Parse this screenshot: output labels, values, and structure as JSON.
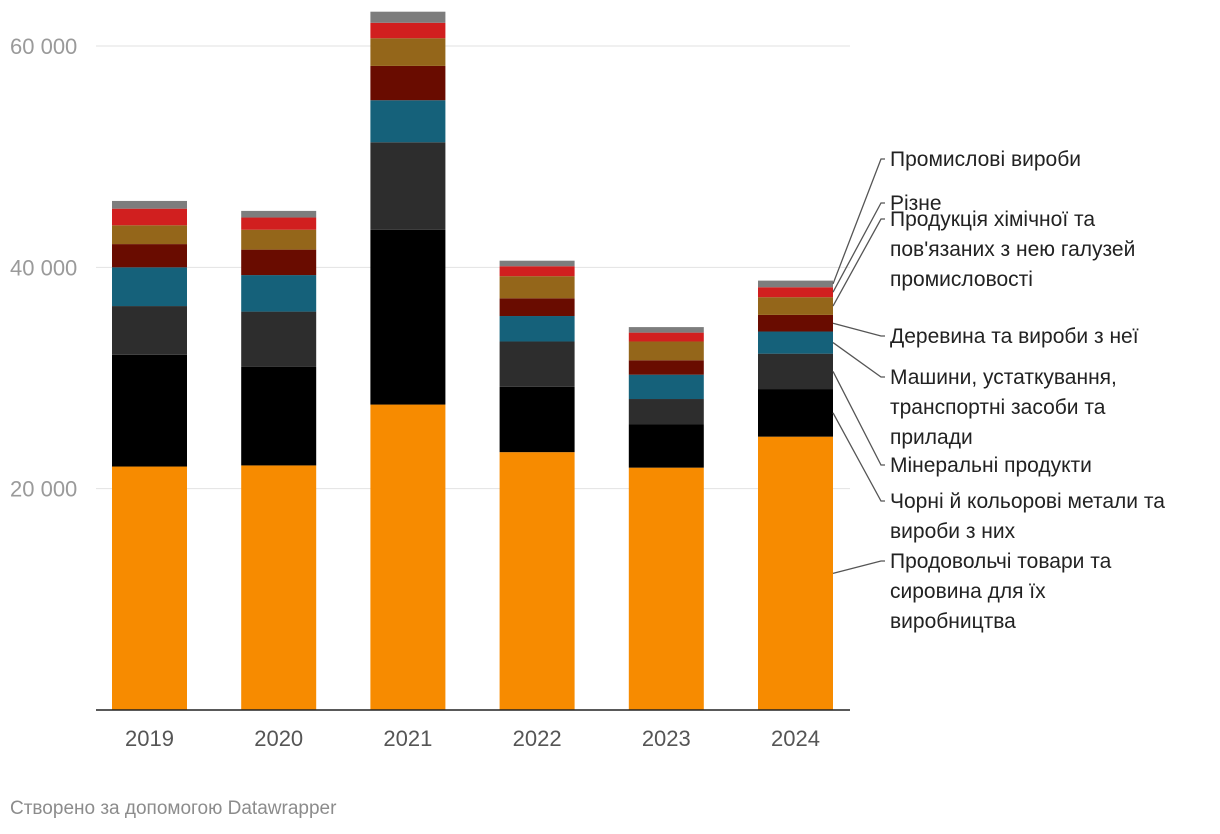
{
  "chart_data": {
    "type": "bar",
    "stacked": true,
    "categories": [
      "2019",
      "2020",
      "2021",
      "2022",
      "2023",
      "2024"
    ],
    "ylim": [
      0,
      60000
    ],
    "yticks": [
      {
        "value": 20000,
        "label": "20 000"
      },
      {
        "value": 40000,
        "label": "40 000"
      },
      {
        "value": 60000,
        "label": "60 000"
      }
    ],
    "grid": true,
    "legend_position": "right",
    "series": [
      {
        "name": "Продовольчі товари та сировина для їх виробництва",
        "label_lines": [
          "Продовольчі товари та",
          "сировина для їх",
          "виробництва"
        ],
        "color": "#f78b00",
        "values": [
          22000,
          22100,
          27600,
          23300,
          21900,
          24700
        ]
      },
      {
        "name": "Чорні й кольорові метали та вироби з них",
        "label_lines": [
          "Чорні й кольорові метали та",
          "вироби з них"
        ],
        "color": "#000000",
        "values": [
          10100,
          8900,
          15800,
          5900,
          3900,
          4300
        ]
      },
      {
        "name": "Мінеральні продукти",
        "label_lines": [
          "Мінеральні продукти"
        ],
        "color": "#2d2d2d",
        "values": [
          4400,
          5000,
          7900,
          4100,
          2300,
          3200
        ]
      },
      {
        "name": "Машини, устаткування, транспортні засоби та прилади",
        "label_lines": [
          "Машини, устаткування,",
          "транспортні засоби та",
          "прилади"
        ],
        "color": "#15617a",
        "values": [
          3500,
          3300,
          3800,
          2300,
          2200,
          2000
        ]
      },
      {
        "name": "Деревина та вироби з неї",
        "label_lines": [
          "Деревина та вироби з неї"
        ],
        "color": "#690c00",
        "values": [
          2100,
          2300,
          3100,
          1600,
          1300,
          1500
        ]
      },
      {
        "name": "Продукція хімічної та пов'язаних з нею галузей промисловості",
        "label_lines": [
          "Продукція хімічної та",
          "пов'язаних з нею галузей",
          "промисловості"
        ],
        "color": "#94661a",
        "values": [
          1700,
          1800,
          2500,
          2000,
          1700,
          1600
        ]
      },
      {
        "name": "Різне",
        "label_lines": [
          "Різне"
        ],
        "color": "#d11f1f",
        "values": [
          1500,
          1100,
          1400,
          900,
          800,
          900
        ]
      },
      {
        "name": "Промислові вироби",
        "label_lines": [
          "Промислові вироби"
        ],
        "color": "#7d7d7d",
        "values": [
          700,
          600,
          1000,
          500,
          500,
          600
        ]
      }
    ]
  },
  "footer": {
    "credit": "Створено за допомогою Datawrapper"
  }
}
